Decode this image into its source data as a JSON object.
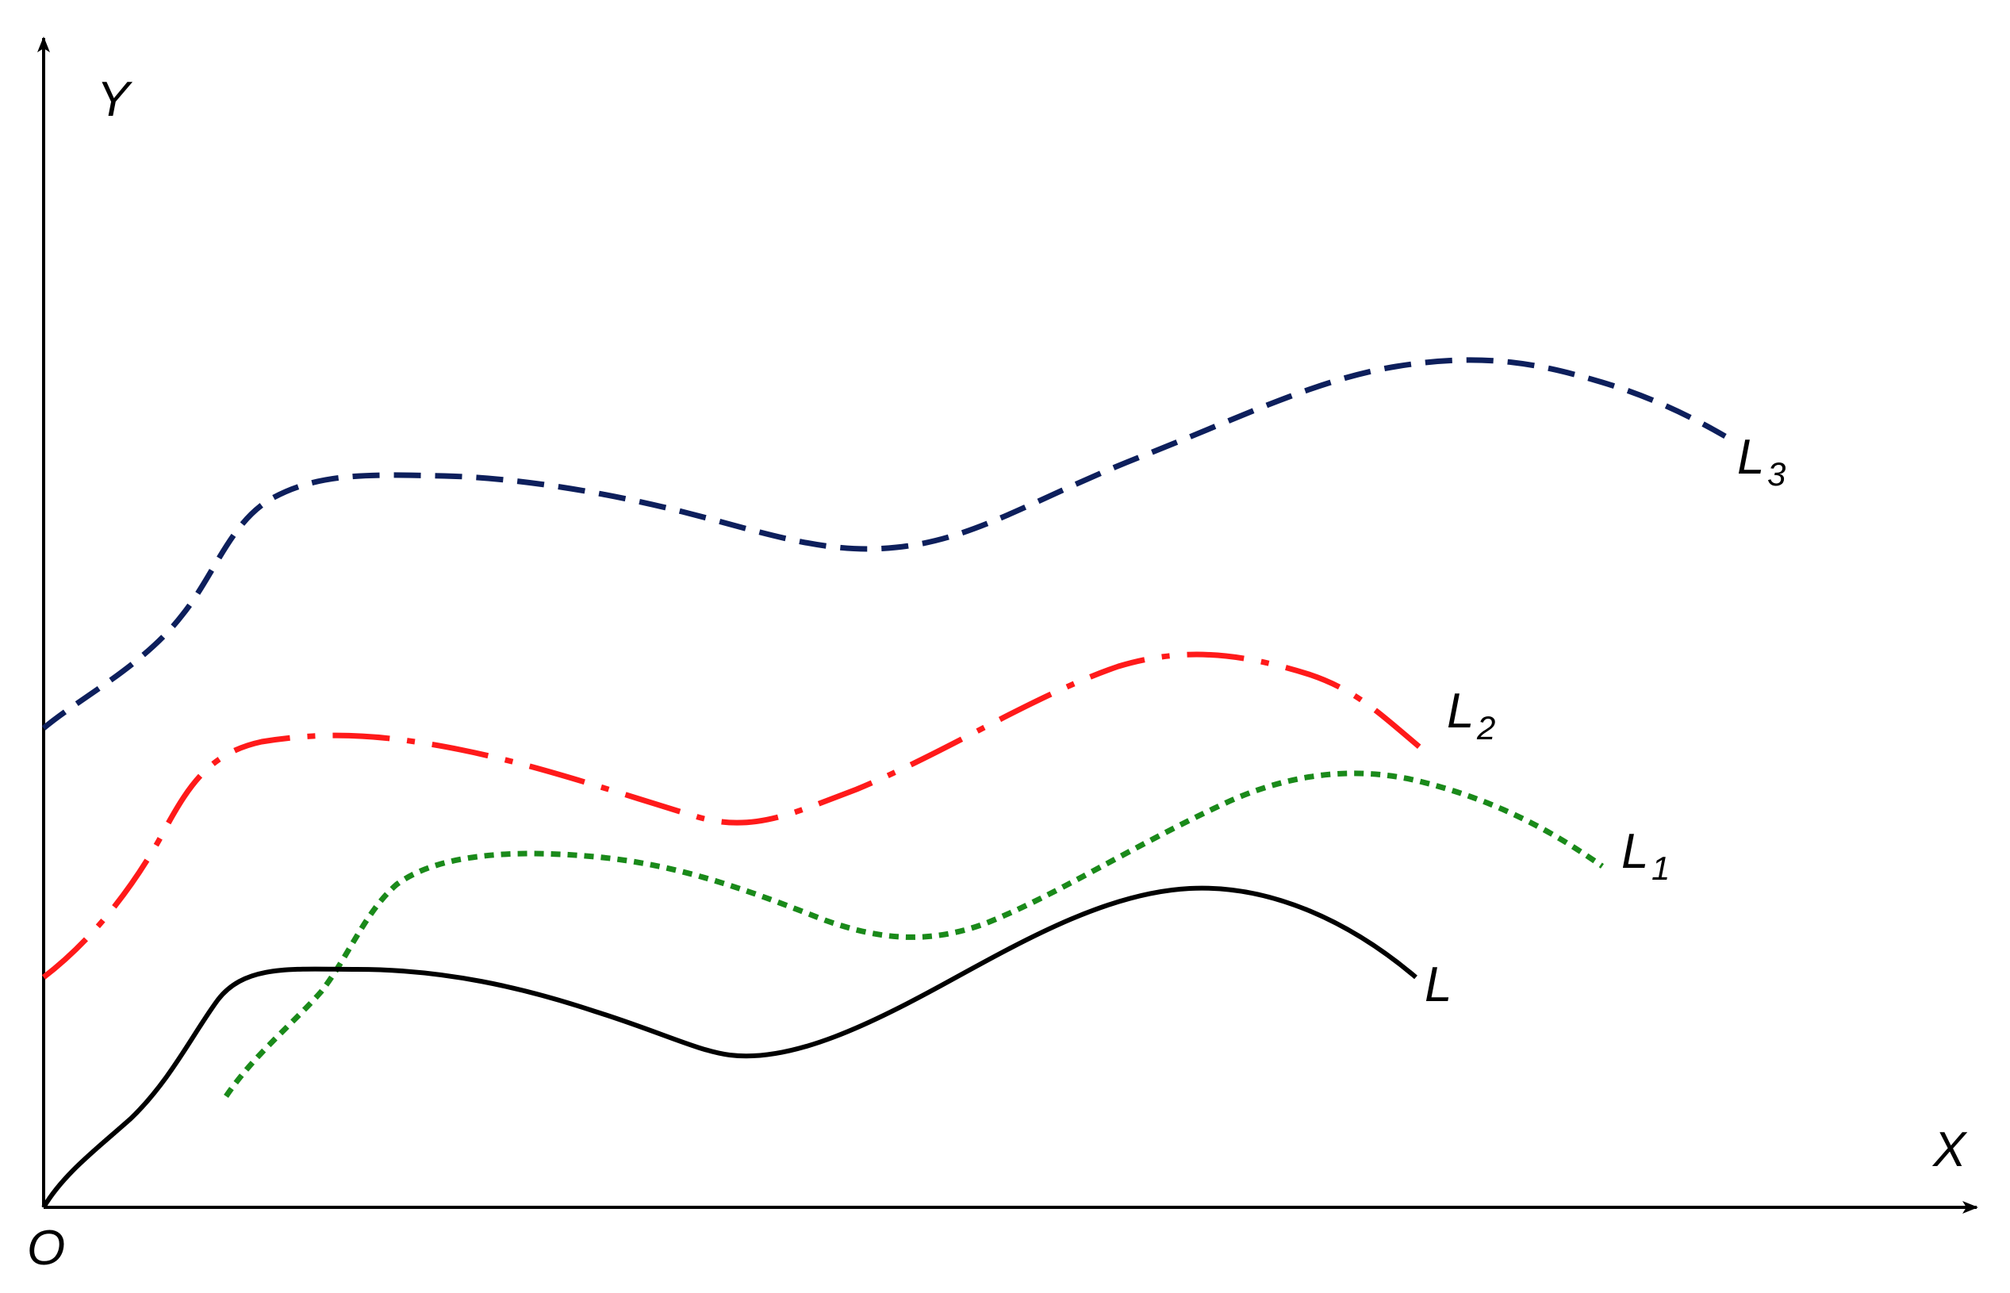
{
  "axes": {
    "x_label": "X",
    "y_label": "Y",
    "origin_label": "O",
    "color": "#000000"
  },
  "curves": [
    {
      "id": "L",
      "label": "L",
      "subscript": "",
      "color": "#000000",
      "style": "solid"
    },
    {
      "id": "L1",
      "label": "L",
      "subscript": "1",
      "color": "#1a8a1a",
      "style": "dotted"
    },
    {
      "id": "L2",
      "label": "L",
      "subscript": "2",
      "color": "#ff1a1a",
      "style": "dash-dot"
    },
    {
      "id": "L3",
      "label": "L",
      "subscript": "3",
      "color": "#0d1f5c",
      "style": "dashed"
    }
  ]
}
